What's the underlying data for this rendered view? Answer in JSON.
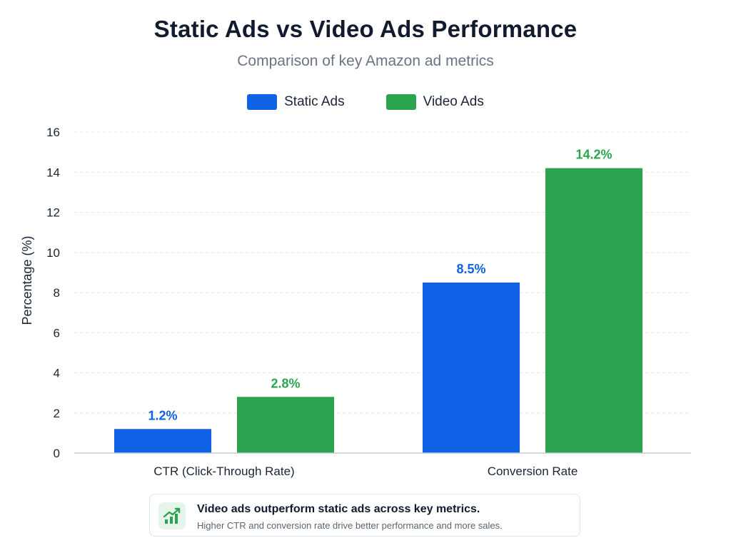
{
  "colors": {
    "static": "#0f62e6",
    "video": "#2ca44f",
    "grid": "#e3e6eb",
    "axis": "#c9ced6",
    "text": "#1b2435"
  },
  "insight": {
    "headline": "Video ads outperform static ads across key metrics.",
    "detail": "Higher CTR and conversion rate drive better performance and more sales.",
    "icon": "trend-up-chart-icon"
  },
  "chart_data": {
    "type": "bar",
    "title": "Static Ads vs Video Ads Performance",
    "subtitle": "Comparison of key Amazon ad metrics",
    "xlabel": "",
    "ylabel": "Percentage (%)",
    "categories": [
      "CTR (Click-Through Rate)",
      "Conversion Rate"
    ],
    "series": [
      {
        "name": "Static Ads",
        "values": [
          1.2,
          8.5
        ],
        "labels": [
          "1.2%",
          "8.5%"
        ],
        "color": "#0f62e6"
      },
      {
        "name": "Video Ads",
        "values": [
          2.8,
          14.2
        ],
        "labels": [
          "2.8%",
          "14.2%"
        ],
        "color": "#2ca44f"
      }
    ],
    "ylim": [
      0,
      16
    ],
    "yticks": [
      "0",
      "2",
      "4",
      "6",
      "8",
      "10",
      "12",
      "14",
      "16"
    ],
    "grid": true,
    "legend": "top-center"
  }
}
